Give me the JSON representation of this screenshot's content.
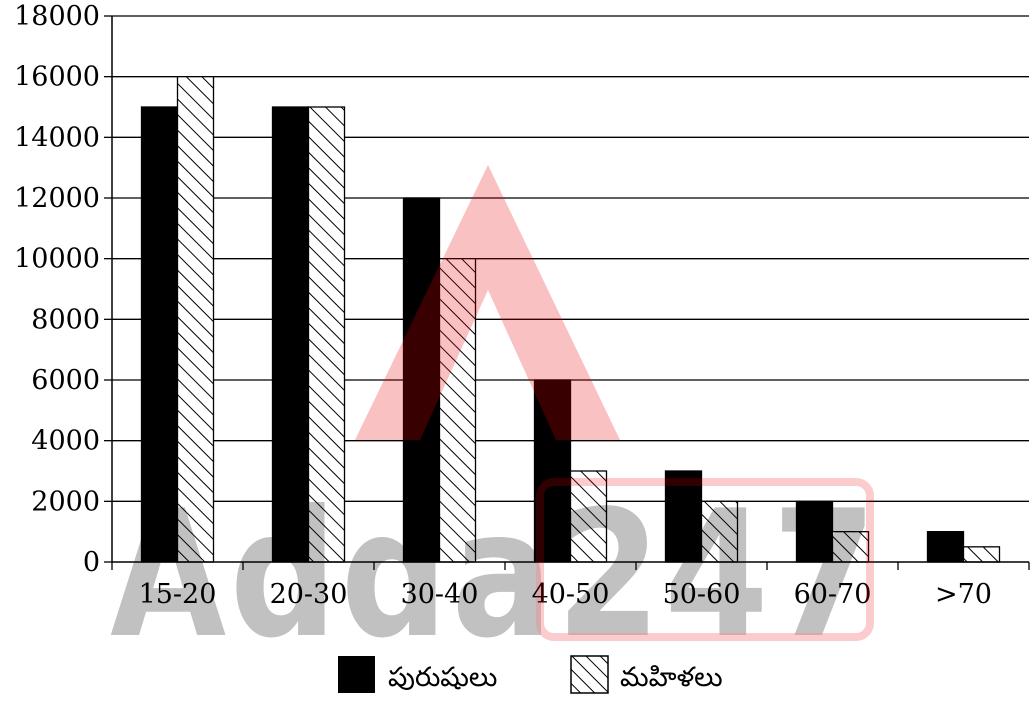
{
  "chart_data": {
    "type": "bar",
    "categories": [
      "15-20",
      "20-30",
      "30-40",
      "40-50",
      "50-60",
      "60-70",
      ">70"
    ],
    "series": [
      {
        "name": "పురుషులు",
        "values": [
          15000,
          15000,
          12000,
          6000,
          3000,
          2000,
          1000
        ],
        "color": "#000000",
        "pattern": "solid"
      },
      {
        "name": "మహిళలు",
        "values": [
          16000,
          15000,
          10000,
          3000,
          2000,
          1000,
          500
        ],
        "color": "#ffffff",
        "pattern": "diagonal-hatch"
      }
    ],
    "yticks": [
      "0",
      "2000",
      "4000",
      "6000",
      "8000",
      "10000",
      "12000",
      "14000",
      "16000",
      "18000"
    ],
    "ylim": [
      0,
      18000
    ],
    "grid": true,
    "legend_position": "bottom-center",
    "title": "",
    "xlabel": "",
    "ylabel": ""
  },
  "watermark": {
    "text": "Adda247",
    "color": "#e8000b"
  }
}
